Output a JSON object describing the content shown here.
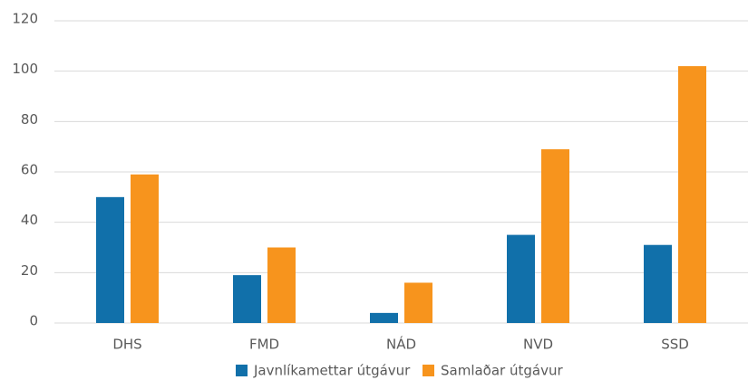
{
  "chart_data": {
    "type": "bar",
    "categories": [
      "DHS",
      "FMD",
      "NÁD",
      "NVD",
      "SSD"
    ],
    "series": [
      {
        "name": "Javnlíkamettar útgávur",
        "color": "#1170aa",
        "values": [
          50,
          19,
          4,
          35,
          31
        ]
      },
      {
        "name": "Samlaðar útgávur",
        "color": "#f7941d",
        "values": [
          59,
          30,
          16,
          69,
          102
        ]
      }
    ],
    "ylim": [
      0,
      120
    ],
    "yticks": [
      0,
      20,
      40,
      60,
      80,
      100,
      120
    ],
    "grid": true,
    "legend": "bottom"
  }
}
